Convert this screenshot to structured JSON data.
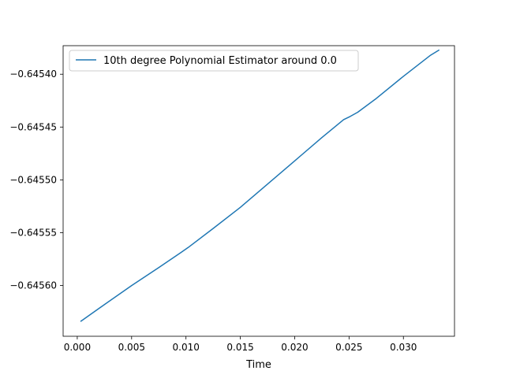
{
  "chart_data": {
    "type": "line",
    "title": "",
    "xlabel": "Time",
    "ylabel": "",
    "xlim": [
      -0.0013,
      0.0347
    ],
    "ylim": [
      -0.645648,
      -0.645373
    ],
    "x_ticks": [
      0.0,
      0.005,
      0.01,
      0.015,
      0.02,
      0.025,
      0.03
    ],
    "x_tick_labels": [
      "0.000",
      "0.005",
      "0.010",
      "0.015",
      "0.020",
      "0.025",
      "0.030"
    ],
    "y_ticks": [
      -0.6456,
      -0.64555,
      -0.6455,
      -0.64545,
      -0.6454
    ],
    "y_tick_labels": [
      "−0.64560",
      "−0.64555",
      "−0.64550",
      "−0.64545",
      "−0.64540"
    ],
    "grid": false,
    "legend": {
      "position": "top-left"
    },
    "colors": {
      "series": "#1f77b4",
      "axis": "#000000"
    },
    "series": [
      {
        "name": "10th degree Polynomial Estimator around 0.0",
        "x": [
          0.0003,
          0.0025,
          0.005,
          0.0075,
          0.0095,
          0.0102,
          0.0125,
          0.015,
          0.0175,
          0.02,
          0.0225,
          0.0245,
          0.0251,
          0.0258,
          0.0275,
          0.03,
          0.0325,
          0.0333
        ],
        "y": [
          -0.645634,
          -0.645618,
          -0.6456,
          -0.645583,
          -0.645569,
          -0.645564,
          -0.645546,
          -0.645526,
          -0.645504,
          -0.645482,
          -0.64546,
          -0.645443,
          -0.64544,
          -0.645436,
          -0.645423,
          -0.645402,
          -0.645382,
          -0.645377
        ]
      }
    ]
  }
}
